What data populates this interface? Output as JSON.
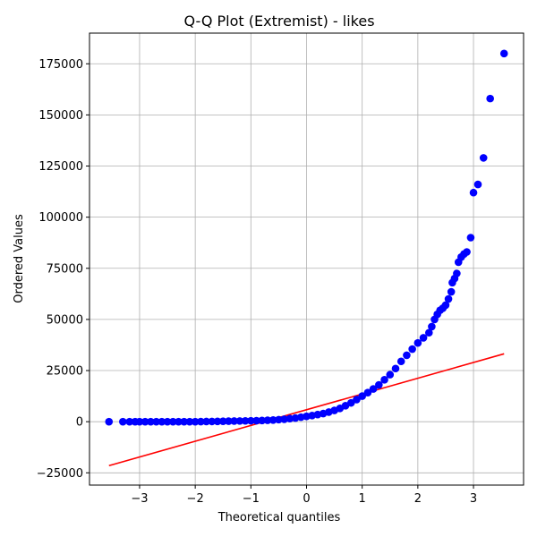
{
  "chart_data": {
    "type": "scatter",
    "title": "Q-Q Plot (Extremist) - likes",
    "xlabel": "Theoretical quantiles",
    "ylabel": "Ordered Values",
    "xlim": [
      -3.9,
      3.9
    ],
    "ylim": [
      -31000,
      190000
    ],
    "xticks": [
      -3,
      -2,
      -1,
      0,
      1,
      2,
      3
    ],
    "xtick_labels": [
      "−3",
      "−2",
      "−1",
      "0",
      "1",
      "2",
      "3"
    ],
    "yticks": [
      -25000,
      0,
      25000,
      50000,
      75000,
      100000,
      125000,
      150000,
      175000
    ],
    "ytick_labels": [
      "−25000",
      "0",
      "25000",
      "50000",
      "75000",
      "100000",
      "125000",
      "150000",
      "175000"
    ],
    "grid": true,
    "colors": {
      "points": "#0000ff",
      "fit_line": "#ff0000",
      "grid": "#b0b0b0"
    },
    "series": [
      {
        "kind": "points",
        "x": [
          -3.55,
          -3.3,
          -3.18,
          -3.08,
          -3.0,
          -2.9,
          -2.8,
          -2.7,
          -2.6,
          -2.5,
          -2.4,
          -2.3,
          -2.2,
          -2.1,
          -2.0,
          -1.9,
          -1.8,
          -1.7,
          -1.6,
          -1.5,
          -1.4,
          -1.3,
          -1.2,
          -1.1,
          -1.0,
          -0.9,
          -0.8,
          -0.7,
          -0.6,
          -0.5,
          -0.4,
          -0.3,
          -0.2,
          -0.1,
          0.0,
          0.1,
          0.2,
          0.3,
          0.4,
          0.5,
          0.6,
          0.7,
          0.8,
          0.9,
          1.0,
          1.1,
          1.2,
          1.3,
          1.4,
          1.5,
          1.6,
          1.7,
          1.8,
          1.9,
          2.0,
          2.1,
          2.2,
          2.25,
          2.3,
          2.35,
          2.4,
          2.45,
          2.5,
          2.55,
          2.6,
          2.62,
          2.66,
          2.7,
          2.73,
          2.78,
          2.83,
          2.88,
          2.95,
          3.0,
          3.08,
          3.18,
          3.3,
          3.55
        ],
        "y": [
          0,
          0,
          0,
          0,
          0,
          0,
          0,
          0,
          0,
          0,
          0,
          0,
          0,
          0,
          0,
          50,
          80,
          120,
          150,
          200,
          250,
          300,
          350,
          400,
          450,
          500,
          600,
          700,
          800,
          1000,
          1200,
          1500,
          1800,
          2200,
          2600,
          3000,
          3500,
          4000,
          4700,
          5500,
          6500,
          7800,
          9200,
          10800,
          12500,
          14200,
          16000,
          18000,
          20500,
          23000,
          26000,
          29500,
          32500,
          35500,
          38500,
          41000,
          43500,
          46500,
          50000,
          52500,
          54500,
          55500,
          57000,
          60000,
          63500,
          68000,
          70000,
          72500,
          78000,
          80500,
          82000,
          83000,
          90000,
          112000,
          116000,
          129000,
          158000,
          180000
        ]
      },
      {
        "kind": "fit-line",
        "x": [
          -3.55,
          3.55
        ],
        "y": [
          -21500,
          33200
        ]
      }
    ]
  }
}
